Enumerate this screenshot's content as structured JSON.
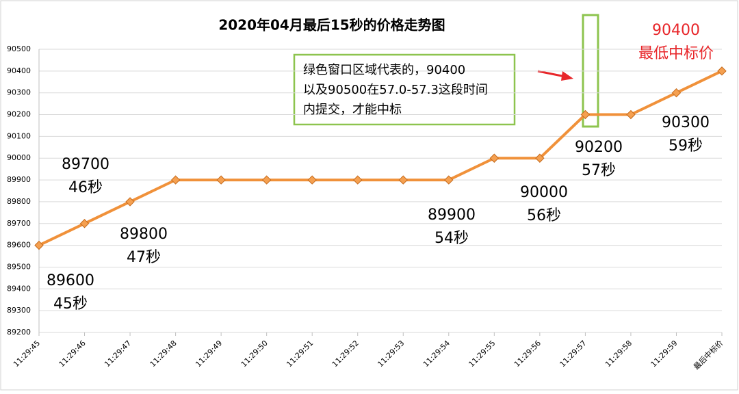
{
  "chart_data": {
    "type": "line",
    "title": "2020年04月最后15秒的价格走势图",
    "categories": [
      "11:29:45",
      "11:29:46",
      "11:29:47",
      "11:29:48",
      "11:29:49",
      "11:29:50",
      "11:29:51",
      "11:29:52",
      "11:29:53",
      "11:29:54",
      "11:29:55",
      "11:29:56",
      "11:29:57",
      "11:29:58",
      "11:29:59",
      "最后中标价"
    ],
    "values": [
      89600,
      89700,
      89800,
      89900,
      89900,
      89900,
      89900,
      89900,
      89900,
      89900,
      90000,
      90000,
      90200,
      90200,
      90300,
      90400
    ],
    "color": "#f0913a",
    "ylim": [
      89200,
      90500
    ],
    "yticks": [
      89200,
      89300,
      89400,
      89500,
      89600,
      89700,
      89800,
      89900,
      90000,
      90100,
      90200,
      90300,
      90400,
      90500
    ],
    "grid": true,
    "annotations": [
      {
        "lines": [
          "89600",
          "45秒"
        ]
      },
      {
        "lines": [
          "89700",
          "46秒"
        ]
      },
      {
        "lines": [
          "89800",
          "47秒"
        ]
      },
      {
        "lines": [
          "89900",
          "54秒"
        ]
      },
      {
        "lines": [
          "90000",
          "56秒"
        ]
      },
      {
        "lines": [
          "90200",
          "57秒"
        ]
      },
      {
        "lines": [
          "90300",
          "59秒"
        ]
      },
      {
        "lines": [
          "90400",
          "最低中标价"
        ],
        "color": "#e8262a"
      }
    ],
    "note_box": {
      "lines": [
        "绿色窗口区域代表的，90400",
        "以及90500在57.0-57.3这段时间",
        "内提交，才能中标"
      ]
    }
  }
}
